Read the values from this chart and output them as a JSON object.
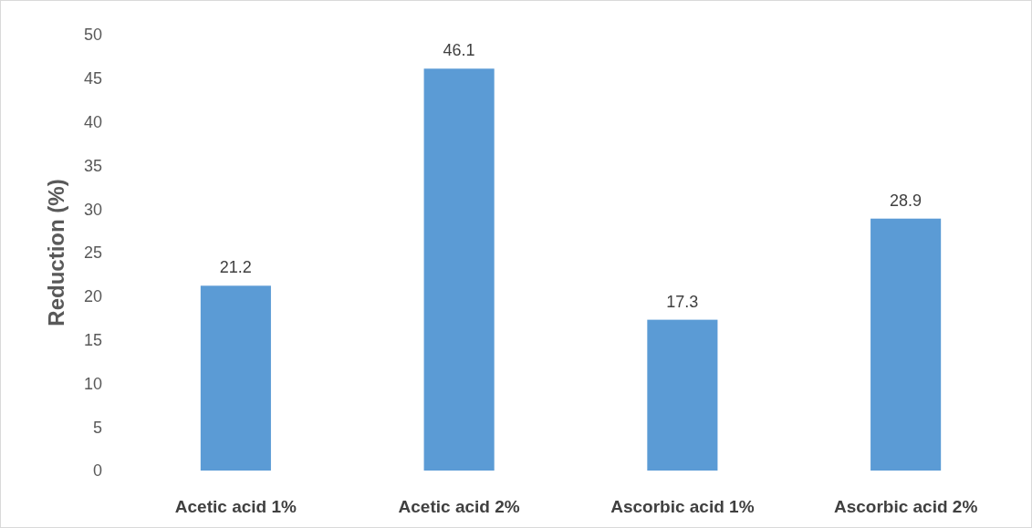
{
  "chart_data": {
    "type": "bar",
    "ylabel": "Reduction (%)",
    "categories": [
      "Acetic acid 1%",
      "Acetic acid 2%",
      "Ascorbic acid 1%",
      "Ascorbic acid 2%"
    ],
    "values": [
      21.2,
      46.1,
      17.3,
      28.9
    ],
    "color": "#5b9bd5",
    "ylim": [
      0,
      50
    ],
    "yticks": [
      0,
      5,
      10,
      15,
      20,
      25,
      30,
      35,
      40,
      45,
      50
    ],
    "grid": false,
    "data_labels": true
  }
}
